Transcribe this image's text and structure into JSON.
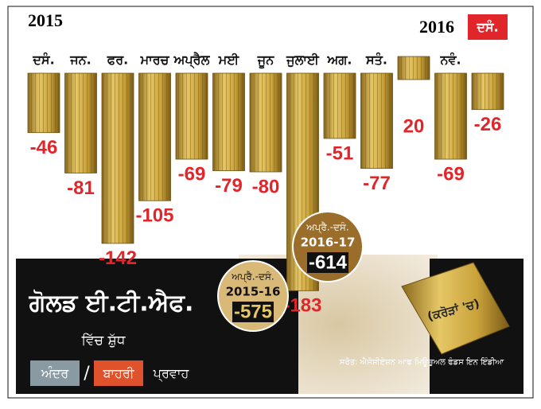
{
  "chart_data": {
    "type": "bar",
    "title": "ਗੋਲਡ ਈ.ਟੀ.ਐਫ.",
    "subtitle": "ਵਿੱਚ ਸ਼ੁੱਧ",
    "legend_words": [
      "ਅੰਦਰ",
      "/",
      "ਬਾਹਰੀ",
      "ਪ੍ਰਵਾਹ"
    ],
    "unit_note": "(ਕਰੋੜਾਂ 'ਚ)",
    "year_start": "2015",
    "year_end": "2016",
    "source": "ਸਰੋਤ: ਐਸੋਸੀਏਸ਼ਨ ਆਫ ਮਿਊਚੁਅਲ ਫੰਡਸ ਇਨ ਇੰਡੀਆ",
    "categories": [
      "ਦਸੰ.",
      "ਜਨ.",
      "ਫਰ.",
      "ਮਾਰਚ",
      "ਅਪ੍ਰੈਲ",
      "ਮਈ",
      "ਜੂਨ",
      "ਜੁਲਾਈ",
      "ਅਗ.",
      "ਸਤੰ.",
      null,
      "ਨਵੰ.",
      "ਦਸੰ."
    ],
    "values": [
      -46,
      -81,
      -142,
      -105,
      -69,
      -79,
      -80,
      -183,
      -51,
      -77,
      20,
      -69,
      -26
    ],
    "color": "#c9a23a",
    "label_color": "#e0252b",
    "annotations": [
      {
        "period": "ਅਪ੍ਰੈ.-ਦਸੰ.",
        "year": "2015-16",
        "value": -575
      },
      {
        "period": "ਅਪ੍ਰੈ.-ਦਸੰ.",
        "year": "2016-17",
        "value": -614
      }
    ]
  }
}
